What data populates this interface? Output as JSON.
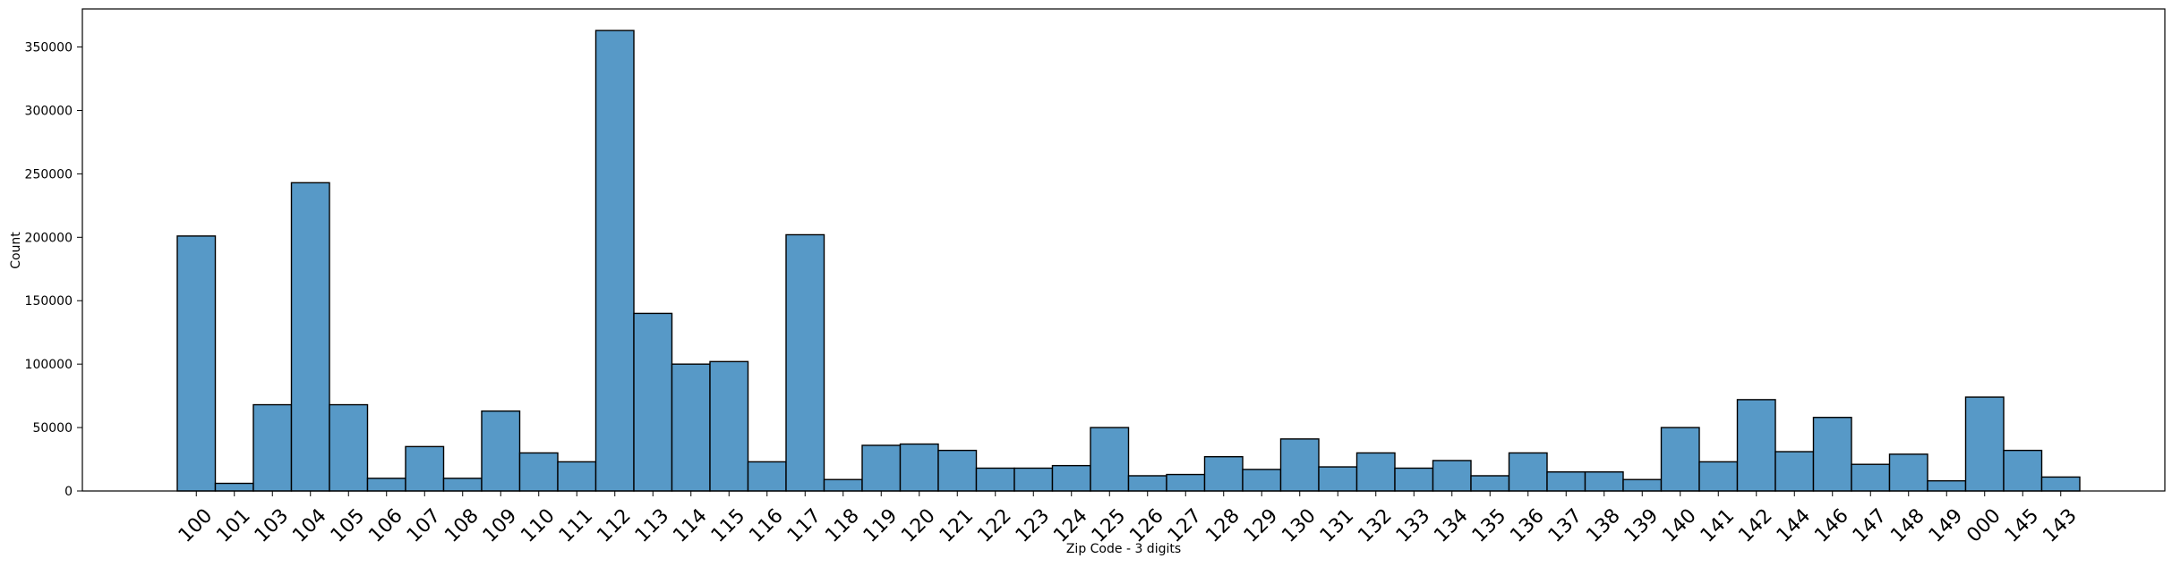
{
  "chart_data": {
    "type": "bar",
    "title": "",
    "xlabel": "Zip Code - 3 digits",
    "ylabel": "Count",
    "ylim": [
      0,
      380000
    ],
    "yticks": [
      0,
      50000,
      100000,
      150000,
      200000,
      250000,
      300000,
      350000
    ],
    "ytick_labels": [
      "0",
      "50000",
      "100000",
      "150000",
      "200000",
      "250000",
      "300000",
      "350000"
    ],
    "grid": false,
    "legend": "none",
    "bar_color": "#5799c7",
    "edge_color": "#000000",
    "categories": [
      "100",
      "101",
      "103",
      "104",
      "105",
      "106",
      "107",
      "108",
      "109",
      "110",
      "111",
      "112",
      "113",
      "114",
      "115",
      "116",
      "117",
      "118",
      "119",
      "120",
      "121",
      "122",
      "123",
      "124",
      "125",
      "126",
      "127",
      "128",
      "129",
      "130",
      "131",
      "132",
      "133",
      "134",
      "135",
      "136",
      "137",
      "138",
      "139",
      "140",
      "141",
      "142",
      "144",
      "146",
      "147",
      "148",
      "149",
      "000",
      "145",
      "143"
    ],
    "values": [
      201000,
      6000,
      68000,
      243000,
      68000,
      10000,
      35000,
      10000,
      63000,
      30000,
      23000,
      363000,
      140000,
      100000,
      102000,
      23000,
      202000,
      9000,
      36000,
      37000,
      32000,
      18000,
      18000,
      20000,
      50000,
      12000,
      13000,
      27000,
      17000,
      41000,
      19000,
      30000,
      18000,
      24000,
      12000,
      30000,
      15000,
      15000,
      9000,
      50000,
      23000,
      72000,
      31000,
      58000,
      21000,
      29000,
      8000,
      74000,
      32000,
      11000
    ]
  }
}
